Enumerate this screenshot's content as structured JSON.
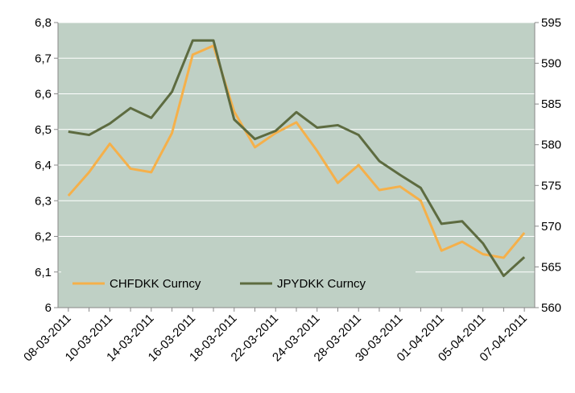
{
  "chart_data": {
    "type": "line",
    "categories": [
      "08-03-2011",
      null,
      "10-03-2011",
      null,
      "14-03-2011",
      null,
      "16-03-2011",
      null,
      "18-03-2011",
      null,
      "22-03-2011",
      null,
      "24-03-2011",
      null,
      "28-03-2011",
      null,
      "30-03-2011",
      null,
      "01-04-2011",
      null,
      "05-04-2011",
      null,
      "07-04-2011"
    ],
    "series": [
      {
        "name": "CHFDKK Curncy",
        "color": "#f5b04a",
        "values": [
          6.314,
          6.38,
          6.46,
          6.39,
          6.38,
          6.49,
          6.71,
          6.735,
          6.55,
          6.45,
          6.49,
          6.52,
          6.44,
          6.35,
          6.4,
          6.33,
          6.34,
          6.3,
          6.16,
          6.185,
          6.15,
          6.14,
          6.21
        ]
      },
      {
        "name": "JPYDKK Curncy",
        "color": "#5d6b40",
        "axis": "y2",
        "values": [
          581.6,
          581.2,
          582.6,
          584.5,
          583.3,
          586.5,
          592.8,
          592.8,
          583.1,
          580.7,
          581.7,
          584.0,
          582.1,
          582.4,
          581.2,
          578.0,
          576.3,
          574.7,
          570.3,
          570.6,
          567.9,
          563.9,
          566.2
        ]
      }
    ],
    "ylim": [
      6,
      6.8
    ],
    "yticks": [
      6,
      {
        "value": 6.1,
        "label": "6,1"
      },
      {
        "value": 6.2,
        "label": "6,2"
      },
      {
        "value": 6.3,
        "label": "6,3"
      },
      {
        "value": 6.4,
        "label": "6,4"
      },
      {
        "value": 6.5,
        "label": "6,5"
      },
      {
        "value": 6.6,
        "label": "6,6"
      },
      {
        "value": 6.7,
        "label": "6,7"
      },
      {
        "value": 6.8,
        "label": "6,8"
      }
    ],
    "y2lim": [
      560,
      595
    ],
    "y2ticks": [
      560,
      565,
      570,
      575,
      580,
      585,
      590,
      595
    ],
    "grid": true,
    "legend": "lower left",
    "background": "#bfd0c5"
  }
}
